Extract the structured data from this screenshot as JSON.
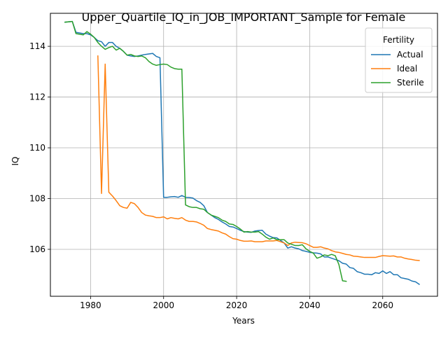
{
  "chart_data": {
    "type": "line",
    "title": "Upper_Quartile_IQ_in_JOB_IMPORTANT_Sample for Female",
    "xlabel": "Years",
    "ylabel": "IQ",
    "xlim": [
      1969,
      2075
    ],
    "ylim": [
      104.15,
      115.3
    ],
    "xticks": [
      1980,
      2000,
      2020,
      2040,
      2060
    ],
    "yticks": [
      106,
      108,
      110,
      112,
      114
    ],
    "grid": true,
    "legend": {
      "title": "Fertility",
      "placement": "top-right"
    },
    "series": [
      {
        "name": "Actual",
        "color": "#1f77b4",
        "x": [
          1973,
          1975,
          1976,
          1978,
          1979,
          1980,
          1981,
          1982,
          1983,
          1984,
          1985,
          1986,
          1987,
          1988,
          1989,
          1990,
          1991,
          1992,
          1993,
          1994,
          1995,
          1996,
          1997,
          1998,
          1999,
          2000,
          2001,
          2002,
          2003,
          2004,
          2005,
          2006,
          2007,
          2008,
          2009,
          2010,
          2011,
          2012,
          2013,
          2014,
          2015,
          2016,
          2017,
          2018,
          2019,
          2020,
          2021,
          2022,
          2023,
          2024,
          2025,
          2026,
          2027,
          2028,
          2029,
          2030,
          2031,
          2032,
          2033,
          2034,
          2035,
          2036,
          2037,
          2038,
          2039,
          2040,
          2041,
          2042,
          2043,
          2044,
          2045,
          2046,
          2047,
          2048,
          2049,
          2050,
          2051,
          2052,
          2053,
          2054,
          2055,
          2056,
          2057,
          2058,
          2059,
          2060,
          2061,
          2062,
          2063,
          2064,
          2065,
          2066,
          2067,
          2068,
          2069,
          2070
        ],
        "values": [
          114.95,
          114.98,
          114.55,
          114.5,
          114.5,
          114.45,
          114.35,
          114.22,
          114.18,
          114.0,
          114.15,
          114.15,
          114.0,
          113.92,
          113.8,
          113.65,
          113.62,
          113.6,
          113.62,
          113.65,
          113.68,
          113.7,
          113.72,
          113.6,
          113.55,
          108.05,
          108.05,
          108.07,
          108.08,
          108.05,
          108.12,
          108.05,
          108.04,
          108.02,
          107.92,
          107.85,
          107.72,
          107.45,
          107.35,
          107.25,
          107.18,
          107.08,
          107.0,
          106.9,
          106.88,
          106.82,
          106.75,
          106.7,
          106.68,
          106.67,
          106.72,
          106.74,
          106.75,
          106.6,
          106.52,
          106.46,
          106.45,
          106.35,
          106.25,
          106.05,
          106.1,
          106.05,
          106.02,
          105.95,
          105.92,
          105.88,
          105.86,
          105.85,
          105.82,
          105.7,
          105.7,
          105.65,
          105.6,
          105.55,
          105.45,
          105.42,
          105.28,
          105.25,
          105.12,
          105.08,
          105.02,
          105.02,
          105.0,
          105.08,
          105.05,
          105.15,
          105.05,
          105.12,
          105.0,
          105.0,
          104.88,
          104.85,
          104.82,
          104.75,
          104.72,
          104.62
        ]
      },
      {
        "name": "Ideal",
        "color": "#ff7f0e",
        "x": [
          1982,
          1983,
          1984,
          1985,
          1986,
          1987,
          1988,
          1989,
          1990,
          1991,
          1992,
          1993,
          1994,
          1995,
          1996,
          1997,
          1998,
          1999,
          2000,
          2001,
          2002,
          2003,
          2004,
          2005,
          2006,
          2007,
          2008,
          2009,
          2010,
          2011,
          2012,
          2013,
          2014,
          2015,
          2016,
          2017,
          2018,
          2019,
          2020,
          2021,
          2022,
          2023,
          2024,
          2025,
          2026,
          2027,
          2028,
          2029,
          2030,
          2031,
          2032,
          2033,
          2034,
          2035,
          2036,
          2037,
          2038,
          2039,
          2040,
          2041,
          2042,
          2043,
          2044,
          2045,
          2046,
          2047,
          2048,
          2049,
          2050,
          2051,
          2052,
          2053,
          2054,
          2055,
          2056,
          2057,
          2058,
          2059,
          2060,
          2061,
          2062,
          2063,
          2064,
          2065,
          2066,
          2067,
          2068,
          2069,
          2070
        ],
        "values": [
          113.62,
          108.2,
          113.3,
          108.25,
          108.1,
          107.92,
          107.72,
          107.65,
          107.62,
          107.85,
          107.8,
          107.65,
          107.45,
          107.35,
          107.32,
          107.3,
          107.25,
          107.25,
          107.28,
          107.2,
          107.25,
          107.22,
          107.2,
          107.25,
          107.15,
          107.1,
          107.1,
          107.08,
          107.02,
          106.95,
          106.82,
          106.78,
          106.75,
          106.72,
          106.65,
          106.6,
          106.5,
          106.42,
          106.4,
          106.35,
          106.32,
          106.32,
          106.33,
          106.3,
          106.3,
          106.3,
          106.33,
          106.33,
          106.33,
          106.35,
          106.3,
          106.25,
          106.15,
          106.25,
          106.28,
          106.27,
          106.26,
          106.22,
          106.15,
          106.08,
          106.08,
          106.1,
          106.05,
          106.02,
          105.95,
          105.9,
          105.88,
          105.84,
          105.8,
          105.78,
          105.73,
          105.72,
          105.7,
          105.68,
          105.68,
          105.68,
          105.68,
          105.72,
          105.75,
          105.74,
          105.73,
          105.74,
          105.7,
          105.7,
          105.65,
          105.62,
          105.6,
          105.57,
          105.56
        ]
      },
      {
        "name": "Sterile",
        "color": "#2ca02c",
        "x": [
          1973,
          1975,
          1976,
          1978,
          1979,
          1980,
          1981,
          1982,
          1983,
          1984,
          1985,
          1986,
          1987,
          1988,
          1989,
          1990,
          1991,
          1992,
          1993,
          1994,
          1995,
          1996,
          1997,
          1998,
          1999,
          2000,
          2001,
          2002,
          2003,
          2004,
          2005,
          2006,
          2007,
          2008,
          2009,
          2010,
          2011,
          2012,
          2013,
          2014,
          2015,
          2016,
          2017,
          2018,
          2019,
          2020,
          2021,
          2022,
          2023,
          2024,
          2025,
          2026,
          2027,
          2028,
          2029,
          2030,
          2031,
          2032,
          2033,
          2034,
          2035,
          2036,
          2037,
          2038,
          2039,
          2040,
          2041,
          2042,
          2043,
          2044,
          2045,
          2046,
          2047,
          2048,
          2049,
          2050
        ],
        "values": [
          114.95,
          114.98,
          114.5,
          114.45,
          114.58,
          114.48,
          114.35,
          114.15,
          114.0,
          113.88,
          113.95,
          114.0,
          113.85,
          113.92,
          113.8,
          113.65,
          113.68,
          113.62,
          113.6,
          113.62,
          113.55,
          113.4,
          113.3,
          113.25,
          113.28,
          113.3,
          113.28,
          113.18,
          113.12,
          113.1,
          113.1,
          107.75,
          107.68,
          107.65,
          107.65,
          107.6,
          107.58,
          107.45,
          107.35,
          107.3,
          107.25,
          107.15,
          107.1,
          107.0,
          106.98,
          106.9,
          106.8,
          106.68,
          106.7,
          106.68,
          106.68,
          106.7,
          106.6,
          106.48,
          106.4,
          106.45,
          106.38,
          106.38,
          106.38,
          106.25,
          106.2,
          106.15,
          106.15,
          106.18,
          106.02,
          105.92,
          105.85,
          105.65,
          105.7,
          105.78,
          105.75,
          105.8,
          105.75,
          105.4,
          104.76,
          104.74
        ]
      }
    ]
  }
}
